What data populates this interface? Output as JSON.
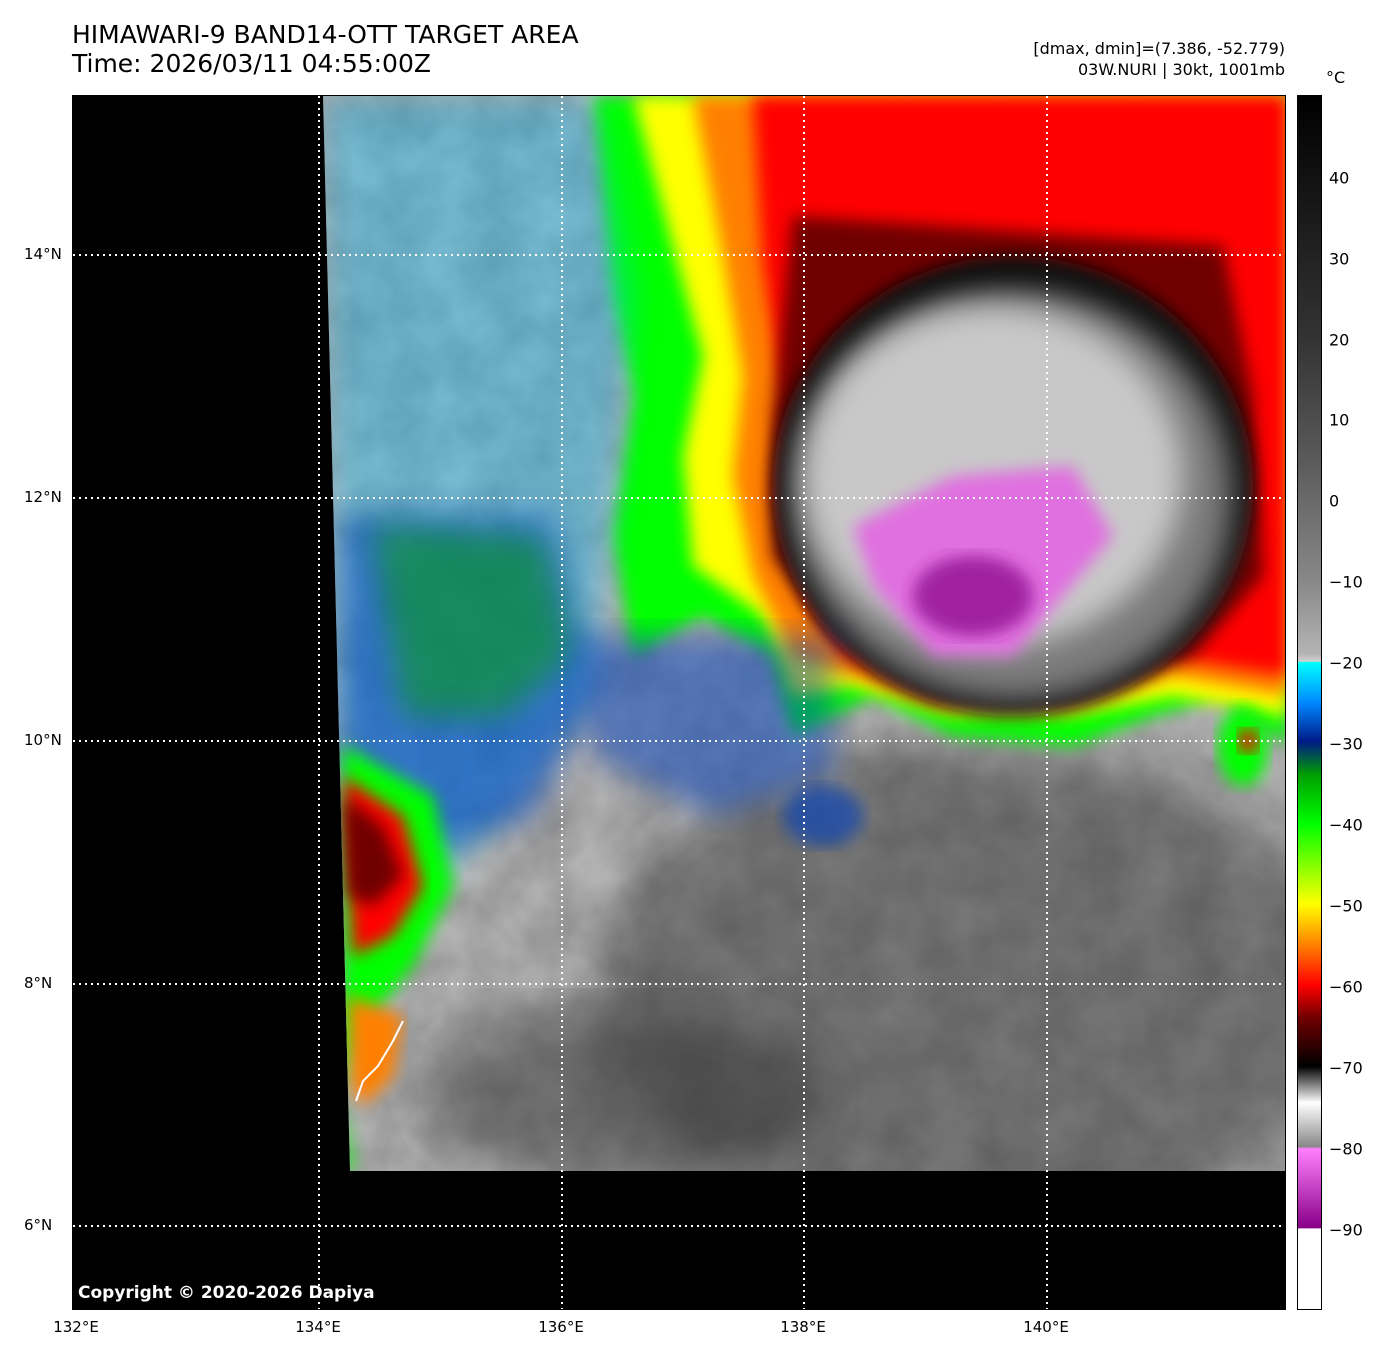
{
  "header": {
    "title": "HIMAWARI-9 BAND14-OTT TARGET AREA",
    "time": "Time: 2026/03/11 04:55:00Z",
    "dmax_dmin": "[dmax, dmin]=(7.386, -52.779)",
    "storm": "03W.NURI | 30kt, 1001mb"
  },
  "map": {
    "copyright": "Copyright © 2020-2026 Dapiya",
    "lon_ticks": [
      "132°E",
      "134°E",
      "136°E",
      "138°E",
      "140°E"
    ],
    "lat_ticks": [
      "14°N",
      "12°N",
      "10°N",
      "8°N",
      "6°N"
    ],
    "grid_lines": true,
    "storm_center_approx": {
      "lon": 139.2,
      "lat": 11.3
    }
  },
  "colorbar": {
    "unit": "°C",
    "ticks": [
      "40",
      "30",
      "20",
      "10",
      "0",
      "−10",
      "−20",
      "−30",
      "−40",
      "−50",
      "−60",
      "−70",
      "−80",
      "−90"
    ]
  }
}
